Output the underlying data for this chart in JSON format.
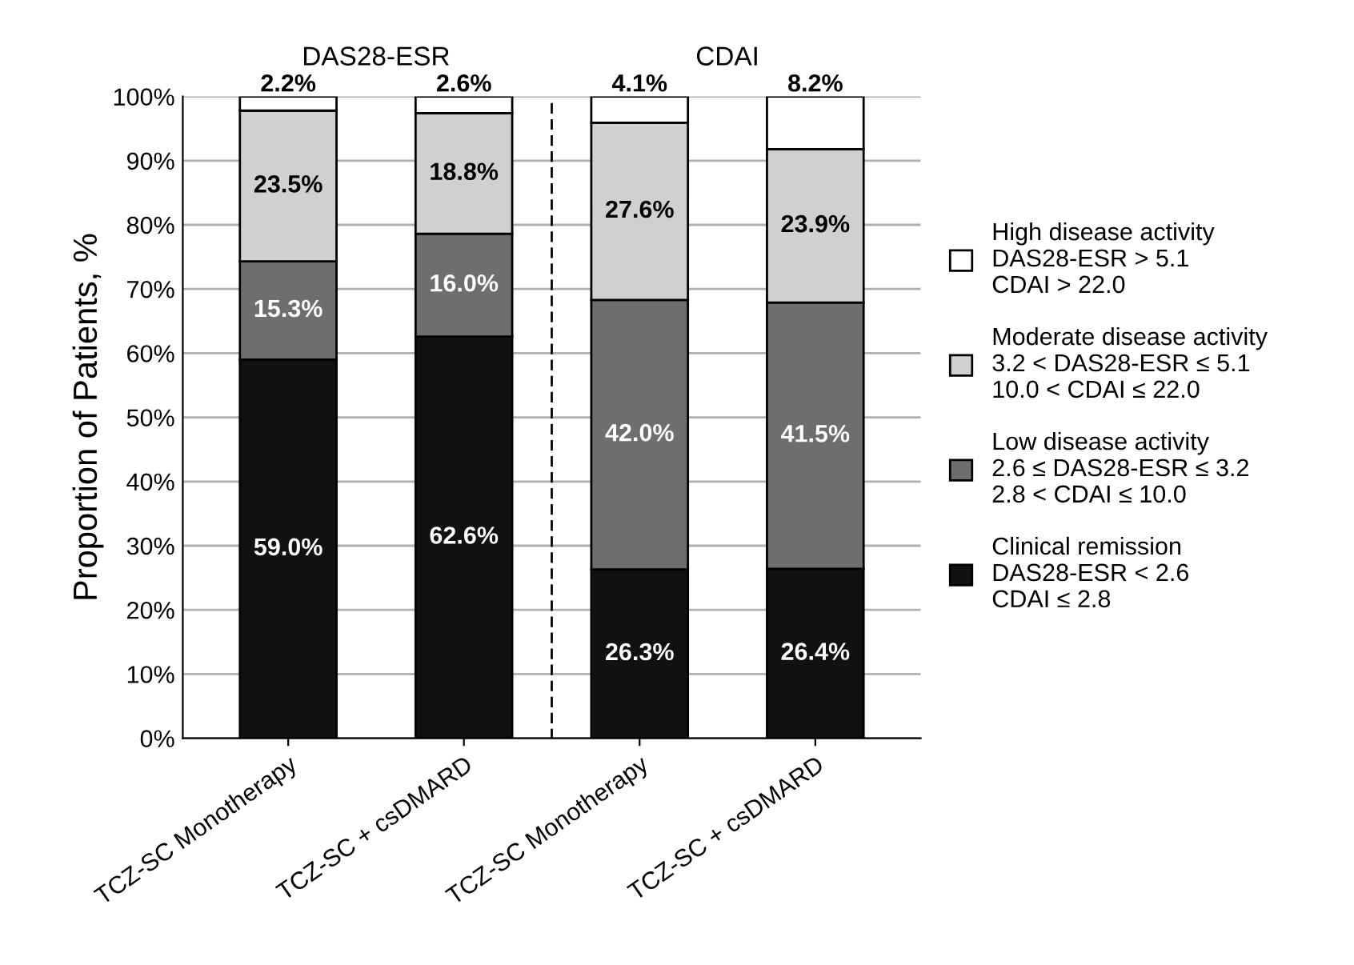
{
  "chart_data": {
    "type": "bar",
    "stacked": true,
    "ylabel": "Proportion of Patients, %",
    "categories": [
      "TCZ-SC Monotherapy",
      "TCZ-SC + csDMARD",
      "TCZ-SC Monotherapy",
      "TCZ-SC + csDMARD"
    ],
    "series": [
      {
        "name": "Clinical remission\nDAS28-ESR < 2.6\nCDAI ≤ 2.8",
        "color": "#111111",
        "values": [
          59.0,
          62.6,
          26.3,
          26.4
        ],
        "value_labels": [
          "59.0%",
          "62.6%",
          "26.3%",
          "26.4%"
        ]
      },
      {
        "name": "Low disease activity\n2.6 ≤ DAS28-ESR ≤ 3.2\n2.8 < CDAI ≤ 10.0",
        "color": "#6e6e6e",
        "values": [
          15.3,
          16.0,
          42.0,
          41.5
        ],
        "value_labels": [
          "15.3%",
          "16.0%",
          "42.0%",
          "41.5%"
        ]
      },
      {
        "name": "Moderate disease activity\n3.2 < DAS28-ESR ≤ 5.1\n10.0 < CDAI ≤ 22.0",
        "color": "#d0d0d0",
        "values": [
          23.5,
          18.8,
          27.6,
          23.9
        ],
        "value_labels": [
          "23.5%",
          "18.8%",
          "27.6%",
          "23.9%"
        ]
      },
      {
        "name": "High disease activity\nDAS28-ESR > 5.1\nCDAI > 22.0",
        "color": "#ffffff",
        "values": [
          2.2,
          2.6,
          4.1,
          8.2
        ],
        "value_labels": [
          "2.2%",
          "2.6%",
          "4.1%",
          "8.2%"
        ]
      }
    ],
    "ylim": [
      0,
      100
    ],
    "yticks": [
      {
        "value": 0,
        "label": "0%"
      },
      {
        "value": 10,
        "label": "10%"
      },
      {
        "value": 20,
        "label": "20%"
      },
      {
        "value": 30,
        "label": "30%"
      },
      {
        "value": 40,
        "label": "40%"
      },
      {
        "value": 50,
        "label": "50%"
      },
      {
        "value": 60,
        "label": "60%"
      },
      {
        "value": 70,
        "label": "70%"
      },
      {
        "value": 80,
        "label": "80%"
      },
      {
        "value": 90,
        "label": "90%"
      },
      {
        "value": 100,
        "label": "100%"
      }
    ],
    "grid": "y",
    "legend": "right",
    "annotations": [
      "DAS28-ESR",
      "CDAI"
    ]
  }
}
